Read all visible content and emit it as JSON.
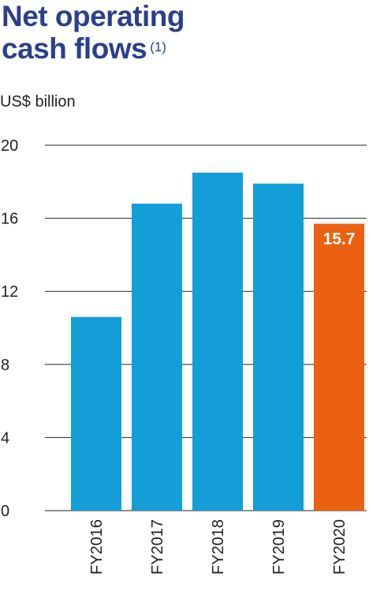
{
  "title": {
    "line1": "Net operating",
    "line2": "cash flows",
    "footnote": "(1)"
  },
  "chart_data": {
    "type": "bar",
    "title": "Net operating cash flows",
    "ylabel": "US$ billion",
    "xlabel": "",
    "categories": [
      "FY2016",
      "FY2017",
      "FY2018",
      "FY2019",
      "FY2020"
    ],
    "values": [
      10.6,
      16.8,
      18.5,
      17.9,
      15.7
    ],
    "ylim": [
      0,
      20
    ],
    "yticks": [
      0,
      4,
      8,
      12,
      16,
      20
    ],
    "grid": true,
    "legend": "none",
    "data_labels": [
      null,
      null,
      null,
      null,
      "15.7"
    ],
    "colors": {
      "default": "#139ed8",
      "highlight": "#ec6111",
      "gridline": "#222222",
      "data_label": "#ffffff"
    },
    "highlight_index": 4
  }
}
